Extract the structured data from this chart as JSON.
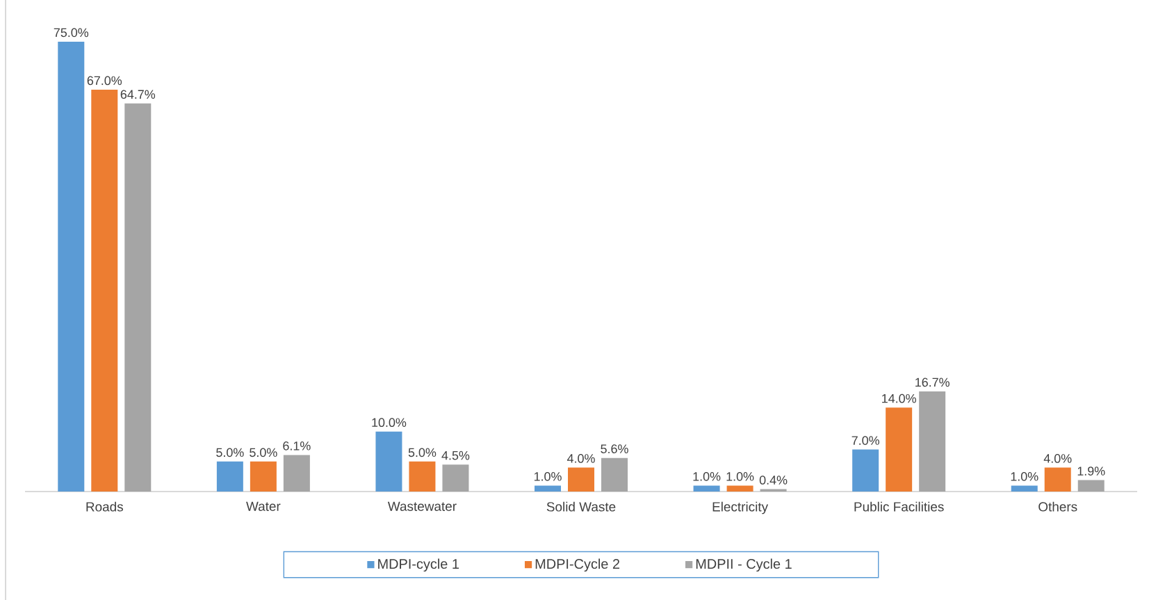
{
  "chart_data": {
    "type": "bar",
    "categories": [
      "Roads",
      "Water",
      "Wastewater",
      "Solid Waste",
      "Electricity",
      "Public Facilities",
      "Others"
    ],
    "series": [
      {
        "name": "MDPI-cycle 1",
        "color": "#5b9bd5",
        "values": [
          75.0,
          5.0,
          10.0,
          1.0,
          1.0,
          7.0,
          1.0
        ],
        "value_labels": [
          "75.0%",
          "5.0%",
          "10.0%",
          "1.0%",
          "1.0%",
          "7.0%",
          "1.0%"
        ]
      },
      {
        "name": "MDPI-Cycle 2",
        "color": "#ed7d31",
        "values": [
          67.0,
          5.0,
          5.0,
          4.0,
          1.0,
          14.0,
          4.0
        ],
        "value_labels": [
          "67.0%",
          "5.0%",
          "5.0%",
          "4.0%",
          "1.0%",
          "14.0%",
          "4.0%"
        ]
      },
      {
        "name": "MDPII - Cycle 1",
        "color": "#a5a5a5",
        "values": [
          64.7,
          6.1,
          4.5,
          5.6,
          0.4,
          16.7,
          1.9
        ],
        "value_labels": [
          "64.7%",
          "6.1%",
          "4.5%",
          "5.6%",
          "0.4%",
          "16.7%",
          "1.9%"
        ]
      }
    ],
    "legend": "bottom",
    "tick_labels": "x"
  }
}
